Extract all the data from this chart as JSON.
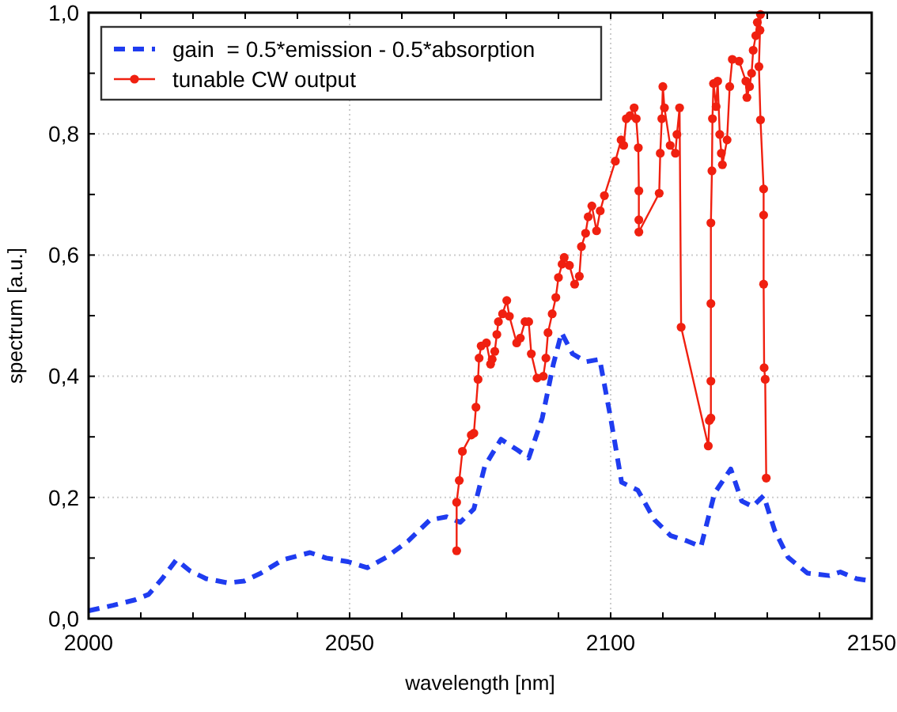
{
  "chart_data": {
    "type": "line",
    "xlabel": "wavelength [nm]",
    "ylabel": "spectrum [a.u.]",
    "xlim": [
      2000,
      2150
    ],
    "xticks": [
      2000,
      {
        "value": 2010,
        "label": null
      },
      {
        "value": 2020,
        "label": null
      },
      {
        "value": 2030,
        "label": null
      },
      {
        "value": 2040,
        "label": null
      },
      2050,
      {
        "value": 2060,
        "label": null
      },
      {
        "value": 2070,
        "label": null
      },
      {
        "value": 2080,
        "label": null
      },
      {
        "value": 2090,
        "label": null
      },
      2100,
      {
        "value": 2110,
        "label": null
      },
      {
        "value": 2120,
        "label": null
      },
      {
        "value": 2130,
        "label": null
      },
      {
        "value": 2140,
        "label": null
      },
      2150
    ],
    "ylim": [
      0,
      1
    ],
    "yticks": [
      {
        "value": 0,
        "label": "0,0"
      },
      {
        "value": 0.1,
        "label": null
      },
      {
        "value": 0.2,
        "label": "0,2"
      },
      {
        "value": 0.3,
        "label": null
      },
      {
        "value": 0.4,
        "label": "0,4"
      },
      {
        "value": 0.5,
        "label": null
      },
      {
        "value": 0.6,
        "label": "0,6"
      },
      {
        "value": 0.7,
        "label": null
      },
      {
        "value": 0.8,
        "label": "0,8"
      },
      {
        "value": 0.9,
        "label": null
      },
      {
        "value": 1,
        "label": "1,0"
      }
    ],
    "grid": true,
    "legend": "top left",
    "series": [
      {
        "name": "gain  = 0.5*emission - 0.5*absorption",
        "color": "#1f3cf0",
        "line_style": "dashed",
        "marker": "none",
        "x": [
          2000,
          2004.7,
          2008.9,
          2011.5,
          2014.1,
          2016.8,
          2019.4,
          2022.5,
          2026.7,
          2029.8,
          2033,
          2037.2,
          2042.4,
          2045.5,
          2049.7,
          2053.4,
          2057,
          2061.2,
          2065.4,
          2068.6,
          2071.2,
          2073.8,
          2075.9,
          2079,
          2082.2,
          2084.3,
          2086.9,
          2089,
          2090.6,
          2092.7,
          2095.3,
          2097.9,
          2100,
          2102.1,
          2105.2,
          2108.4,
          2111.5,
          2114.7,
          2117.3,
          2119.9,
          2123,
          2125.1,
          2127.2,
          2129.3,
          2131.4,
          2134,
          2137.7,
          2141.9,
          2144,
          2147.1,
          2150
        ],
        "values": [
          0.013,
          0.022,
          0.031,
          0.04,
          0.066,
          0.097,
          0.079,
          0.066,
          0.059,
          0.062,
          0.075,
          0.097,
          0.109,
          0.1,
          0.094,
          0.084,
          0.101,
          0.128,
          0.163,
          0.168,
          0.159,
          0.181,
          0.252,
          0.296,
          0.278,
          0.265,
          0.331,
          0.419,
          0.472,
          0.437,
          0.424,
          0.428,
          0.331,
          0.225,
          0.212,
          0.163,
          0.137,
          0.128,
          0.119,
          0.207,
          0.247,
          0.194,
          0.185,
          0.203,
          0.146,
          0.101,
          0.075,
          0.071,
          0.077,
          0.066,
          0.062
        ]
      },
      {
        "name": "tunable CW output",
        "color": "#f02010",
        "line_style": "solid",
        "marker": "circle",
        "x": [
          2070.5,
          2070.5,
          2071,
          2071.6,
          2073.3,
          2073.8,
          2074.2,
          2074.6,
          2074.8,
          2075.2,
          2076.2,
          2077,
          2077.3,
          2077.8,
          2078.2,
          2078.5,
          2079.3,
          2080.1,
          2080.6,
          2082,
          2082.7,
          2083.6,
          2084.3,
          2084.8,
          2085.9,
          2087.1,
          2087.6,
          2088,
          2088.8,
          2089.5,
          2090,
          2090.7,
          2091.1,
          2092.1,
          2093.1,
          2094,
          2094.4,
          2095.2,
          2095.7,
          2096.4,
          2097.3,
          2098,
          2098.8,
          2100.9,
          2102,
          2102.5,
          2103,
          2103.7,
          2104.5,
          2104.9,
          2105.3,
          2105.4,
          2105.4,
          2105.4,
          2109.3,
          2109.5,
          2109.8,
          2110,
          2110.3,
          2111.4,
          2112.4,
          2112.7,
          2113.2,
          2113.5,
          2118.7,
          2118.9,
          2119.2,
          2119.2,
          2119.2,
          2119.2,
          2119.4,
          2119.5,
          2119.7,
          2120.2,
          2120.5,
          2120.9,
          2121.2,
          2121.4,
          2122.3,
          2122.8,
          2123.3,
          2124.6,
          2125.9,
          2126.1,
          2126.6,
          2127,
          2127.3,
          2127.8,
          2128.1,
          2128.6,
          2128.7,
          2128.4,
          2128.7,
          2129.3,
          2129.3,
          2129.3,
          2129.4,
          2129.6,
          2129.8
        ],
        "values": [
          0.112,
          0.192,
          0.228,
          0.276,
          0.303,
          0.306,
          0.349,
          0.395,
          0.43,
          0.45,
          0.455,
          0.42,
          0.428,
          0.441,
          0.469,
          0.49,
          0.503,
          0.525,
          0.499,
          0.455,
          0.463,
          0.49,
          0.49,
          0.437,
          0.397,
          0.4,
          0.43,
          0.472,
          0.503,
          0.53,
          0.563,
          0.585,
          0.596,
          0.583,
          0.552,
          0.565,
          0.614,
          0.636,
          0.663,
          0.681,
          0.64,
          0.673,
          0.698,
          0.755,
          0.79,
          0.781,
          0.825,
          0.83,
          0.843,
          0.825,
          0.777,
          0.706,
          0.658,
          0.638,
          0.702,
          0.768,
          0.825,
          0.878,
          0.843,
          0.781,
          0.768,
          0.799,
          0.843,
          0.481,
          0.285,
          0.327,
          0.331,
          0.392,
          0.52,
          0.653,
          0.739,
          0.825,
          0.883,
          0.845,
          0.887,
          0.799,
          0.768,
          0.749,
          0.79,
          0.878,
          0.923,
          0.92,
          0.887,
          0.86,
          0.878,
          0.9,
          0.938,
          0.962,
          0.984,
          0.971,
          0.997,
          0.911,
          0.823,
          0.709,
          0.666,
          0.552,
          0.414,
          0.395,
          0.232
        ]
      }
    ]
  }
}
